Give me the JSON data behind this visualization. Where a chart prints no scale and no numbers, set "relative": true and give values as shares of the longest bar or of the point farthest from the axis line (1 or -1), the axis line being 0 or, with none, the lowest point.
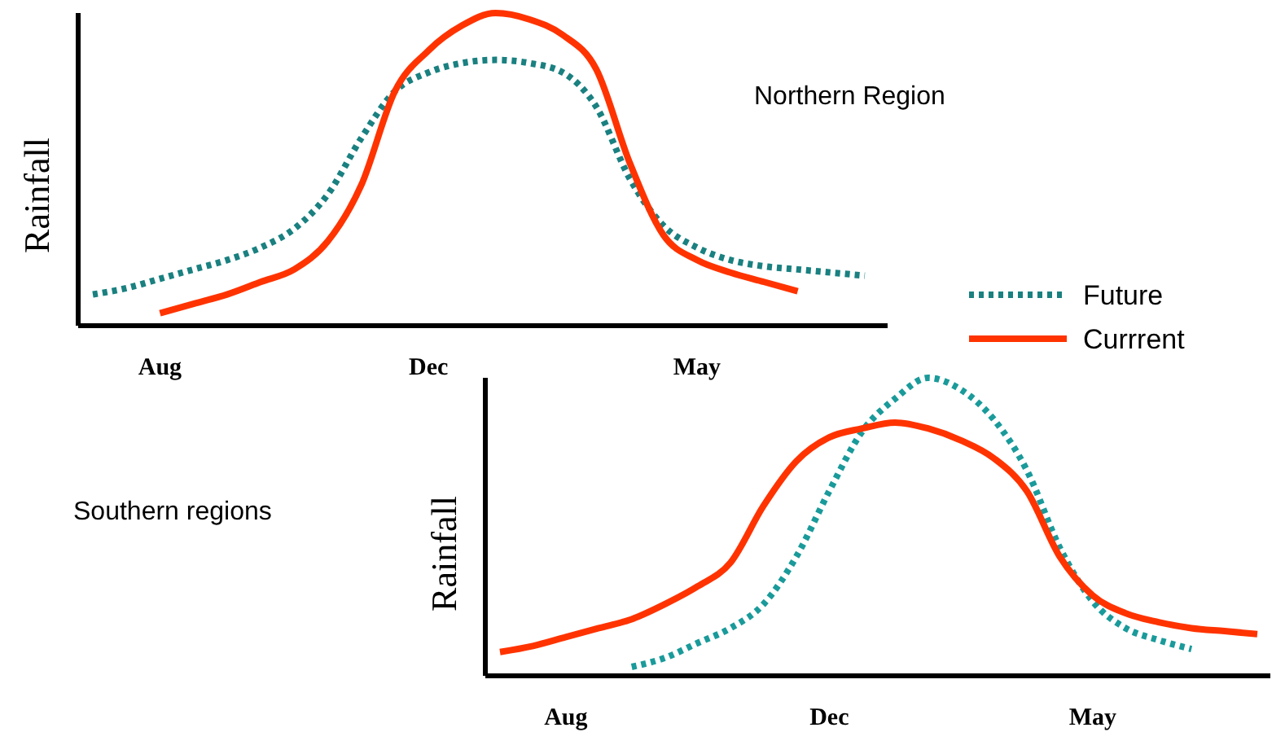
{
  "chart_data": [
    {
      "type": "line",
      "relative": true,
      "ylabel": "Rainfall",
      "legend": "right",
      "annotations": [
        "Northern Region"
      ],
      "categories": [
        null,
        null,
        "Aug",
        null,
        null,
        null,
        null,
        null,
        null,
        null,
        "Dec",
        null,
        null,
        null,
        null,
        null,
        null,
        null,
        "May",
        null,
        null,
        null,
        null,
        null
      ],
      "series": [
        {
          "name": "Future",
          "color": "#1a8080",
          "line_style": "dotted",
          "values": [
            0.1,
            0.12,
            0.15,
            0.18,
            0.21,
            0.25,
            0.31,
            0.42,
            0.6,
            0.75,
            0.81,
            0.84,
            0.85,
            0.84,
            0.81,
            0.7,
            0.47,
            0.32,
            0.25,
            0.21,
            0.19,
            0.18,
            0.17,
            0.16
          ]
        },
        {
          "name": "Currrent",
          "color": "#ff3300",
          "line_style": "solid",
          "values": [
            null,
            null,
            0.04,
            0.07,
            0.1,
            0.14,
            0.18,
            0.27,
            0.45,
            0.75,
            0.88,
            0.96,
            1,
            0.98,
            0.93,
            0.82,
            0.52,
            0.29,
            0.21,
            0.17,
            0.14,
            0.11,
            null,
            null
          ]
        }
      ]
    },
    {
      "type": "line",
      "relative": true,
      "ylabel": "Rainfall",
      "annotations": [
        "Southern regions"
      ],
      "categories": [
        null,
        null,
        "Aug",
        null,
        null,
        null,
        null,
        null,
        null,
        null,
        "Dec",
        null,
        null,
        null,
        null,
        null,
        null,
        null,
        "May",
        null,
        null,
        null,
        null,
        null
      ],
      "series": [
        {
          "color": "#1a9a9a",
          "line_style": "dotted",
          "values": [
            null,
            null,
            null,
            null,
            0.03,
            0.06,
            0.11,
            0.16,
            0.24,
            0.4,
            0.62,
            0.82,
            0.93,
            1,
            0.96,
            0.86,
            0.69,
            0.43,
            0.25,
            0.16,
            0.12,
            0.09,
            null,
            null
          ]
        },
        {
          "color": "#ff3300",
          "line_style": "solid",
          "values": [
            0.08,
            0.1,
            0.13,
            0.16,
            0.19,
            0.24,
            0.3,
            0.38,
            0.57,
            0.72,
            0.8,
            0.83,
            0.85,
            0.83,
            0.79,
            0.73,
            0.62,
            0.4,
            0.27,
            0.21,
            0.18,
            0.16,
            0.15,
            0.14
          ]
        }
      ]
    }
  ]
}
